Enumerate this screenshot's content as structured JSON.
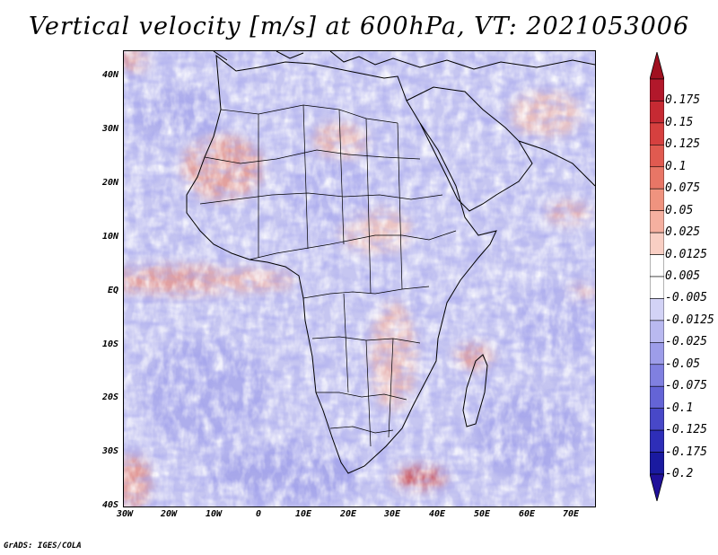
{
  "title": "Vertical velocity [m/s] at 600hPa, VT: 2021053006",
  "map": {
    "region": "Africa",
    "lat_labels": [
      "40N",
      "30N",
      "20N",
      "10N",
      "EQ",
      "10S",
      "20S",
      "30S",
      "40S"
    ],
    "lon_labels": [
      "30W",
      "20W",
      "10W",
      "0",
      "10E",
      "20E",
      "30E",
      "40E",
      "50E",
      "60E",
      "70E"
    ],
    "lat_range": [
      -40,
      45
    ],
    "lon_range": [
      -30,
      75
    ]
  },
  "colorbar": {
    "labels": [
      "0.175",
      "0.15",
      "0.125",
      "0.1",
      "0.075",
      "0.05",
      "0.025",
      "0.0125",
      "0.005",
      "-0.005",
      "-0.0125",
      "-0.025",
      "-0.05",
      "-0.075",
      "-0.1",
      "-0.125",
      "-0.175",
      "-0.2"
    ],
    "colors": [
      "#b2182b",
      "#c62a33",
      "#d6403f",
      "#e05a50",
      "#e87666",
      "#ef937f",
      "#f5b0a0",
      "#f9cfc4",
      "#ffffff",
      "#ffffff",
      "#d3d3f6",
      "#b9b9f0",
      "#9d9de9",
      "#8080e0",
      "#6464d6",
      "#4848c8",
      "#2e2eb8",
      "#1a1aa0"
    ],
    "top_arrow_color": "#a01020",
    "bottom_arrow_color": "#20109a"
  },
  "credit": "GrADS: IGES/COLA"
}
